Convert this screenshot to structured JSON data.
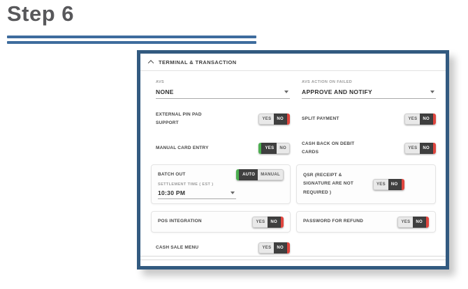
{
  "page": {
    "title": "Step 6"
  },
  "panel": {
    "header": {
      "title": "TERMINAL & TRANSACTION"
    },
    "dropdowns": [
      {
        "label": "AVS",
        "value": "NONE"
      },
      {
        "label": "AVS ACTION ON FAILED",
        "value": "APPROVE AND NOTIFY"
      }
    ],
    "toggles": {
      "external_pin_pad": {
        "label": "EXTERNAL PIN PAD SUPPORT",
        "options": [
          "YES",
          "NO"
        ],
        "value": "NO"
      },
      "split_payment": {
        "label": "SPLIT PAYMENT",
        "options": [
          "YES",
          "NO"
        ],
        "value": "NO"
      },
      "manual_card_entry": {
        "label": "MANUAL CARD ENTRY",
        "options": [
          "YES",
          "NO"
        ],
        "value": "YES"
      },
      "cash_back_debit": {
        "label": "CASH BACK ON DEBIT CARDS",
        "options": [
          "YES",
          "NO"
        ],
        "value": "NO"
      },
      "batch_out": {
        "label": "BATCH OUT",
        "options": [
          "AUTO",
          "MANUAL"
        ],
        "value": "AUTO"
      },
      "qsr": {
        "label": "QSR (RECEIPT & SIGNATURE ARE NOT REQUIRED )",
        "options": [
          "YES",
          "NO"
        ],
        "value": "NO"
      },
      "pos_integration": {
        "label": "POS INTEGRATION",
        "options": [
          "YES",
          "NO"
        ],
        "value": "NO"
      },
      "password_refund": {
        "label": "PASSWORD FOR REFUND",
        "options": [
          "YES",
          "NO"
        ],
        "value": "NO"
      },
      "cash_sale_menu": {
        "label": "CASH SALE MENU",
        "options": [
          "YES",
          "NO"
        ],
        "value": "NO"
      }
    },
    "settlement": {
      "label": "SETTLEMENT TIME ( EST )",
      "value": "10:30 PM"
    }
  },
  "colors": {
    "panel_border": "#325a80",
    "title_rule_blue": "#3e6c9d",
    "toggle_selected_dark": "#3f3f3f",
    "toggle_yes_green": "#4caf50",
    "toggle_no_red": "#e0463f"
  }
}
